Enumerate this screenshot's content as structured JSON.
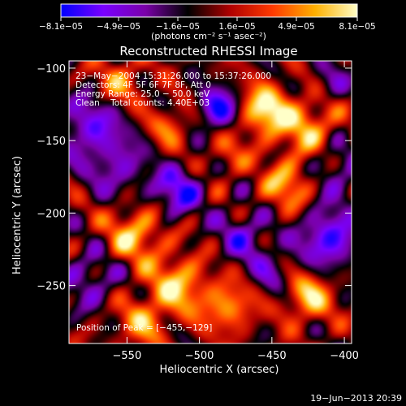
{
  "chart_data": {
    "type": "heatmap",
    "title": "Reconstructed RHESSI Image",
    "xlabel": "Heliocentric X (arcsec)",
    "ylabel": "Heliocentric Y (arcsec)",
    "xlim": [
      -590,
      -395
    ],
    "ylim": [
      -290,
      -95
    ],
    "x_ticks": [
      -550,
      -500,
      -450,
      -400
    ],
    "x_tick_labels": [
      "−550",
      "−500",
      "−450",
      "−400"
    ],
    "y_ticks": [
      -100,
      -150,
      -200,
      -250
    ],
    "y_tick_labels": [
      "−100",
      "−150",
      "−200",
      "−250"
    ],
    "colorbar": {
      "range": [
        -8.1e-05,
        8.1e-05
      ],
      "tick_labels": [
        "−8.1e−05",
        "−4.9e−05",
        "−1.6e−05",
        "1.6e−05",
        "4.9e−05",
        "8.1e−05"
      ],
      "units_label": "(photons cm⁻² s⁻¹ asec⁻²)",
      "colors": [
        "#0000ff",
        "#7a00ff",
        "#7a00a8",
        "#000000",
        "#b00000",
        "#ff3a00",
        "#ffb000",
        "#ffffc8"
      ]
    },
    "annotations": [
      "23−May−2004 15:31:26.000 to 15:37:26.000",
      "Detectors: 4F 5F 6F 7F 8F, Att 0",
      "Energy Range: 25.0 − 50.0 keV",
      "Clean    Total counts: 4.40E+03"
    ],
    "peak_label": "Position of Peak = [−455,−129]",
    "peak_position": [
      -455,
      -129
    ],
    "features": [
      {
        "x": -455,
        "y": -129,
        "v": 1.0,
        "r": 12
      },
      {
        "x": -575,
        "y": -140,
        "v": -0.7,
        "r": 16
      },
      {
        "x": -555,
        "y": -170,
        "v": -0.5,
        "r": 14
      },
      {
        "x": -515,
        "y": -185,
        "v": -0.8,
        "r": 12
      },
      {
        "x": -487,
        "y": -128,
        "v": -0.95,
        "r": 10
      },
      {
        "x": -410,
        "y": -217,
        "v": -0.9,
        "r": 14
      },
      {
        "x": -425,
        "y": -140,
        "v": 0.7,
        "r": 14
      },
      {
        "x": -440,
        "y": -180,
        "v": 0.7,
        "r": 12
      },
      {
        "x": -425,
        "y": -258,
        "v": 0.8,
        "r": 12
      },
      {
        "x": -545,
        "y": -215,
        "v": 0.75,
        "r": 14
      },
      {
        "x": -515,
        "y": -250,
        "v": 0.8,
        "r": 14
      },
      {
        "x": -480,
        "y": -265,
        "v": 0.7,
        "r": 12
      },
      {
        "x": -540,
        "y": -275,
        "v": 0.6,
        "r": 12
      },
      {
        "x": -555,
        "y": -110,
        "v": 0.6,
        "r": 12
      },
      {
        "x": -520,
        "y": -140,
        "v": 0.5,
        "r": 10
      },
      {
        "x": -470,
        "y": -215,
        "v": -0.6,
        "r": 12
      },
      {
        "x": -575,
        "y": -245,
        "v": -0.5,
        "r": 14
      },
      {
        "x": -450,
        "y": -240,
        "v": -0.4,
        "r": 12
      },
      {
        "x": -405,
        "y": -170,
        "v": -0.5,
        "r": 12
      },
      {
        "x": -480,
        "y": -160,
        "v": 0.4,
        "r": 10
      },
      {
        "x": -410,
        "y": -110,
        "v": -0.4,
        "r": 10
      }
    ]
  },
  "footer": {
    "timestamp": "19−Jun−2013 20:39"
  }
}
